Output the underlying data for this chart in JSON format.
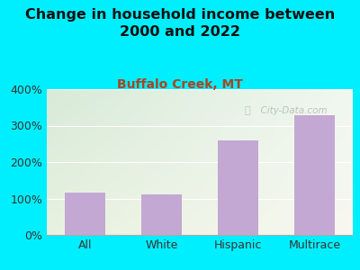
{
  "title": "Change in household income between\n2000 and 2022",
  "subtitle": "Buffalo Creek, MT",
  "categories": [
    "All",
    "White",
    "Hispanic",
    "Multirace"
  ],
  "values": [
    115,
    112,
    260,
    328
  ],
  "bar_color": "#c4a8d4",
  "background_outer": "#00efff",
  "background_plot_top_left": "#d8ead8",
  "background_plot_top_right": "#f0f8f0",
  "background_plot_bottom": "#f8f8f0",
  "title_fontsize": 11.5,
  "subtitle_fontsize": 10,
  "subtitle_color": "#aa4422",
  "tick_label_fontsize": 9,
  "axis_label_fontsize": 9,
  "ylim": [
    0,
    400
  ],
  "yticks": [
    0,
    100,
    200,
    300,
    400
  ],
  "watermark": "  City-Data.com",
  "watermark_icon": "ⓘ"
}
